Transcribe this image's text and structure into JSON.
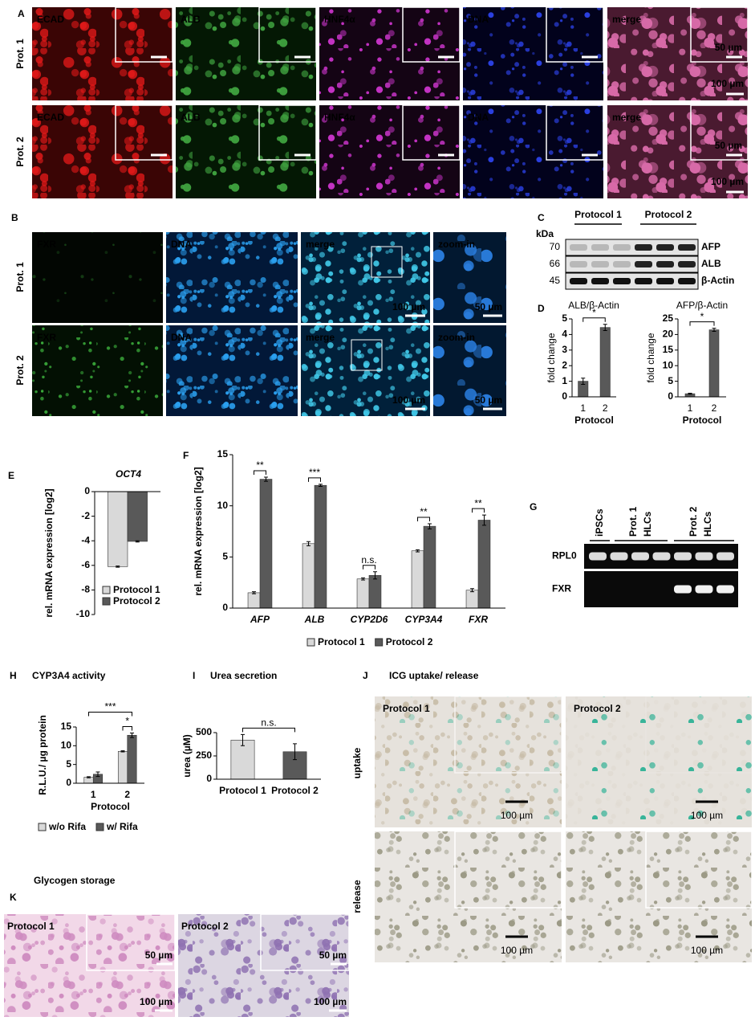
{
  "panel_labels": [
    "A",
    "B",
    "C",
    "D",
    "E",
    "F",
    "G",
    "H",
    "I",
    "J",
    "K"
  ],
  "panel_a": {
    "rows": [
      "Prot. 1",
      "Prot. 2"
    ],
    "channels": [
      "ECAD",
      "ALB",
      "HNF4α",
      "DNA",
      "merge"
    ],
    "scale_bars": [
      "50 µm",
      "100 µm"
    ]
  },
  "panel_b": {
    "rows": [
      "Prot. 1",
      "Prot. 2"
    ],
    "channels": [
      "FXR",
      "DNA",
      "merge",
      "zoom-in"
    ],
    "scale_bars": [
      "100 µm",
      "50 µm"
    ]
  },
  "panel_c": {
    "unit": "kDa",
    "lanes": [
      "Protocol 1",
      "Protocol 2"
    ],
    "markers": [
      "70",
      "66",
      "45"
    ],
    "bands": [
      "AFP",
      "ALB",
      "β-Actin"
    ]
  },
  "panel_g": {
    "lanes": [
      [
        "iPSCs"
      ],
      [
        "Prot. 1",
        "HLCs"
      ],
      [
        "Prot. 2",
        "HLCs"
      ]
    ],
    "bands": [
      "RPL0",
      "FXR"
    ]
  },
  "panel_j": {
    "title": "ICG uptake/ release",
    "columns": [
      "Protocol 1",
      "Protocol 2"
    ],
    "rows": [
      "uptake",
      "release"
    ],
    "scale_bar": "100 µm"
  },
  "panel_k": {
    "title": "Glycogen storage",
    "columns": [
      "Protocol 1",
      "Protocol 2"
    ],
    "scale_bars": [
      "50 µm",
      "100 µm"
    ]
  },
  "chart_data": [
    {
      "type": "bar",
      "title": "ALB/β-Actin",
      "xlabel": "Protocol",
      "ylabel": "fold change",
      "categories": [
        "1",
        "2"
      ],
      "values": [
        1,
        4.45
      ],
      "errors": [
        0.2,
        0.2
      ],
      "color": "#595959",
      "ylim": [
        0,
        5
      ],
      "yticks": [
        0,
        1,
        2,
        3,
        4,
        5
      ],
      "significance": [
        "*"
      ]
    },
    {
      "type": "bar",
      "title": "AFP/β-Actin",
      "xlabel": "Protocol",
      "ylabel": "fold change",
      "categories": [
        "1",
        "2"
      ],
      "values": [
        1,
        21.5
      ],
      "errors": [
        0.15,
        0.5
      ],
      "color": "#595959",
      "ylim": [
        0,
        25
      ],
      "yticks": [
        0,
        5,
        10,
        15,
        20,
        25
      ],
      "significance": [
        "*"
      ]
    },
    {
      "type": "bar",
      "title": "OCT4",
      "ylabel": "rel. mRNA expression [log2]",
      "series": [
        {
          "name": "Protocol 1",
          "color": "#d9d9d9",
          "values": [
            -6.1
          ],
          "errors": [
            0.05
          ]
        },
        {
          "name": "Protocol 2",
          "color": "#595959",
          "values": [
            -4.05
          ],
          "errors": [
            0.05
          ]
        }
      ],
      "ylim": [
        -10,
        0
      ],
      "yticks": [
        0,
        -2,
        -4,
        -6,
        -8,
        -10
      ],
      "legend": "lower right"
    },
    {
      "type": "bar",
      "ylabel": "rel. mRNA expression [log2]",
      "categories": [
        "AFP",
        "ALB",
        "CYP2D6",
        "CYP3A4",
        "FXR"
      ],
      "series": [
        {
          "name": "Protocol 1",
          "color": "#d9d9d9",
          "values": [
            1.5,
            6.3,
            2.85,
            5.6,
            1.75
          ],
          "errors": [
            0.1,
            0.2,
            0.1,
            0.1,
            0.15
          ]
        },
        {
          "name": "Protocol 2",
          "color": "#595959",
          "values": [
            12.6,
            12.0,
            3.2,
            8.0,
            8.6
          ],
          "errors": [
            0.2,
            0.1,
            0.35,
            0.25,
            0.5
          ]
        }
      ],
      "ylim": [
        0,
        15
      ],
      "yticks": [
        0,
        5,
        10,
        15
      ],
      "significance": [
        "**",
        "***",
        "n.s.",
        "**",
        "**"
      ],
      "legend": "bottom"
    },
    {
      "type": "bar",
      "title": "CYP3A4 activity",
      "xlabel": "Protocol",
      "ylabel": "R.L.U./ µg protein",
      "categories": [
        "1",
        "2"
      ],
      "series": [
        {
          "name": "w/o Rifa",
          "color": "#d9d9d9",
          "values": [
            1.6,
            8.5
          ],
          "errors": [
            0.15,
            0.15
          ]
        },
        {
          "name": "w/ Rifa",
          "color": "#595959",
          "values": [
            2.4,
            12.8
          ],
          "errors": [
            0.6,
            0.6
          ]
        }
      ],
      "ylim": [
        0,
        15
      ],
      "yticks": [
        0,
        5,
        10,
        15
      ],
      "significance": [
        "***",
        "*"
      ],
      "legend": "bottom"
    },
    {
      "type": "bar",
      "title": "Urea secretion",
      "ylabel": "urea (µM)",
      "categories": [
        "Protocol 1",
        "Protocol 2"
      ],
      "values": [
        420,
        295
      ],
      "errors": [
        60,
        85
      ],
      "colors": [
        "#d9d9d9",
        "#595959"
      ],
      "ylim": [
        0,
        500
      ],
      "yticks": [
        0,
        250,
        500
      ],
      "significance": [
        "n.s."
      ]
    }
  ]
}
